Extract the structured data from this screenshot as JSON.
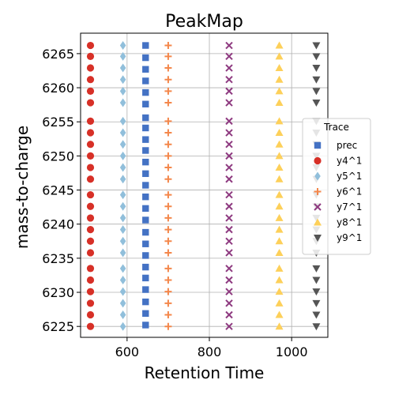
{
  "chart_data": {
    "type": "scatter",
    "title": "PeakMap",
    "xlabel": "Retention Time",
    "ylabel": "mass-to-charge",
    "xlim": [
      487,
      1088
    ],
    "ylim": [
      6223.4,
      6268.0
    ],
    "xticks": [
      600,
      800,
      1000
    ],
    "yticks": [
      6225,
      6230,
      6235,
      6240,
      6245,
      6250,
      6255,
      6260,
      6265
    ],
    "grid": true,
    "legend": {
      "title": "Trace",
      "placement": "center-right"
    },
    "series": [
      {
        "name": "prec",
        "color": "#4472c4",
        "marker": "square",
        "x": 645,
        "y": [
          6266.2,
          6264.4,
          6262.7,
          6261.0,
          6259.3,
          6257.6,
          6255.6,
          6254.1,
          6252.4,
          6250.8,
          6249.1,
          6247.4,
          6245.7,
          6244.0,
          6242.3,
          6240.6,
          6238.8,
          6237.1,
          6235.4,
          6233.7,
          6232.1,
          6230.4,
          6228.6,
          6226.9,
          6225.2
        ]
      },
      {
        "name": "y4^1",
        "color": "#d73027",
        "marker": "circle",
        "x": 511,
        "y": [
          6266.2,
          6264.6,
          6262.9,
          6261.2,
          6259.5,
          6257.8,
          6255.1,
          6253.4,
          6251.7,
          6250.0,
          6248.3,
          6246.6,
          6244.3,
          6242.6,
          6240.9,
          6239.2,
          6237.5,
          6235.8,
          6233.5,
          6231.8,
          6230.1,
          6228.4,
          6226.7,
          6225.0
        ]
      },
      {
        "name": "y5^1",
        "color": "#91bfdb",
        "marker": "diamond",
        "x": 590,
        "y": [
          6266.2,
          6264.6,
          6262.9,
          6261.2,
          6259.5,
          6257.8,
          6255.1,
          6253.4,
          6251.7,
          6250.0,
          6248.3,
          6246.6,
          6244.3,
          6242.6,
          6240.9,
          6239.2,
          6237.5,
          6235.8,
          6233.5,
          6231.8,
          6230.1,
          6228.4,
          6226.7,
          6225.0
        ]
      },
      {
        "name": "y6^1",
        "color": "#f4874b",
        "marker": "plus",
        "x": 700,
        "y": [
          6266.2,
          6264.6,
          6262.9,
          6261.2,
          6259.5,
          6257.8,
          6255.1,
          6253.4,
          6251.7,
          6250.0,
          6248.3,
          6246.6,
          6244.3,
          6242.6,
          6240.9,
          6239.2,
          6237.5,
          6235.8,
          6233.5,
          6231.8,
          6230.1,
          6228.4,
          6226.7,
          6225.0
        ]
      },
      {
        "name": "y7^1",
        "color": "#8e3a80",
        "marker": "x",
        "x": 848,
        "y": [
          6266.2,
          6264.6,
          6262.9,
          6261.2,
          6259.5,
          6257.8,
          6255.1,
          6253.4,
          6251.7,
          6250.0,
          6248.3,
          6246.6,
          6244.3,
          6242.6,
          6240.9,
          6239.2,
          6237.5,
          6235.8,
          6233.5,
          6231.8,
          6230.1,
          6228.4,
          6226.7,
          6225.0
        ]
      },
      {
        "name": "y8^1",
        "color": "#fdd05a",
        "marker": "triangle-up",
        "x": 970,
        "y": [
          6266.2,
          6264.6,
          6262.9,
          6261.2,
          6259.5,
          6257.8,
          6255.1,
          6253.4,
          6251.7,
          6250.0,
          6248.3,
          6246.6,
          6244.3,
          6242.6,
          6240.9,
          6239.2,
          6237.5,
          6235.8,
          6233.5,
          6231.8,
          6230.1,
          6228.4,
          6226.7,
          6225.0
        ]
      },
      {
        "name": "y9^1",
        "color": "#555555",
        "marker": "triangle-down",
        "x": 1060,
        "y": [
          6266.2,
          6264.6,
          6262.9,
          6261.2,
          6259.5,
          6257.8,
          6255.1,
          6253.4,
          6251.7,
          6250.0,
          6248.3,
          6246.6,
          6244.3,
          6242.6,
          6240.9,
          6239.2,
          6237.5,
          6235.8,
          6233.5,
          6231.8,
          6230.1,
          6228.4,
          6226.7,
          6225.0
        ]
      }
    ]
  }
}
